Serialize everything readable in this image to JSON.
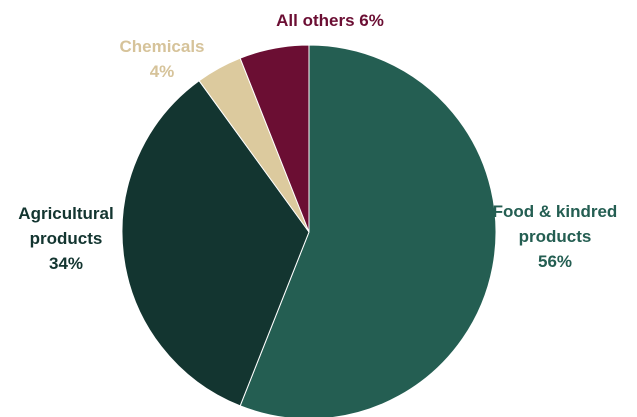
{
  "chart_data": {
    "type": "pie",
    "title": "",
    "slices": [
      {
        "label_lines": [
          "Food & kindred",
          "products"
        ],
        "value": 56,
        "value_text": "56%",
        "color": "#245E52",
        "label_color": "#245E52"
      },
      {
        "label_lines": [
          "Agricultural",
          "products"
        ],
        "value": 34,
        "value_text": "34%",
        "color": "#133530",
        "label_color": "#133530"
      },
      {
        "label_lines": [
          "Chemicals"
        ],
        "value": 4,
        "value_text": "4%",
        "color": "#DCCA9E",
        "label_color": "#D6C39A"
      },
      {
        "label_lines": [
          "All others"
        ],
        "value": 6,
        "value_text": "6%",
        "color": "#6B0E33",
        "label_color": "#6B0E33"
      }
    ]
  }
}
